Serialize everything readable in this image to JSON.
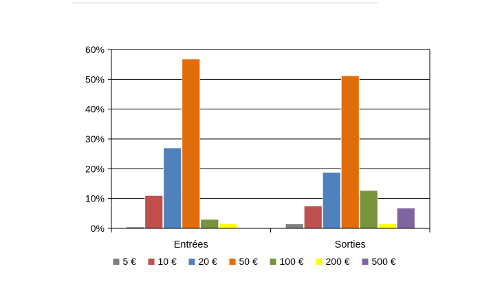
{
  "colors": {
    "5 €": "#7f7f7f",
    "10 €": "#c0504d",
    "20 €": "#4f81bd",
    "50 €": "#e36c0a",
    "100 €": "#77933c",
    "200 €": "#ffff00",
    "500 €": "#8064a2"
  },
  "chart_data": {
    "type": "bar",
    "categories": [
      "Entrées",
      "Sorties"
    ],
    "series": [
      {
        "name": "5 €",
        "values": [
          0.5,
          1.5
        ]
      },
      {
        "name": "10 €",
        "values": [
          11,
          7.5
        ]
      },
      {
        "name": "20 €",
        "values": [
          27,
          18.8
        ]
      },
      {
        "name": "50 €",
        "values": [
          56.8,
          51.2
        ]
      },
      {
        "name": "100 €",
        "values": [
          3,
          12.7
        ]
      },
      {
        "name": "200 €",
        "values": [
          1.5,
          1.5
        ]
      },
      {
        "name": "500 €",
        "values": [
          0,
          6.8
        ]
      }
    ],
    "yticks": [
      "0%",
      "10%",
      "20%",
      "30%",
      "40%",
      "50%",
      "60%"
    ],
    "ylim": [
      0,
      60
    ],
    "ytick_step": 10,
    "grid": true,
    "legend": "bottom",
    "title": "",
    "xlabel": "",
    "ylabel": ""
  }
}
